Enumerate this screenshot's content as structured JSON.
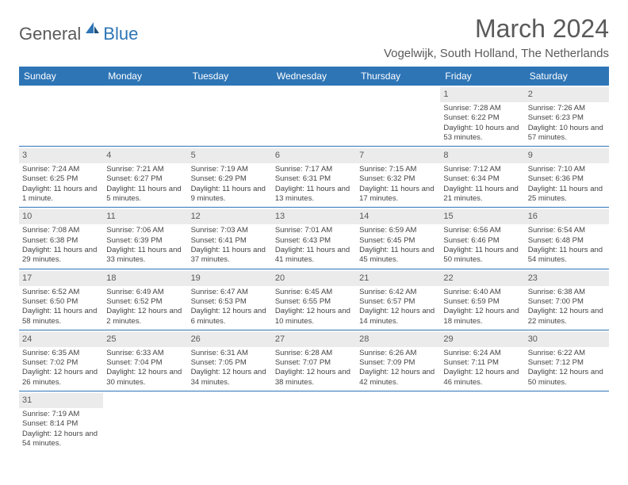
{
  "logo": {
    "part1": "General",
    "part2": "Blue"
  },
  "title": "March 2024",
  "location": "Vogelwijk, South Holland, The Netherlands",
  "colors": {
    "header_bg": "#2e75b6",
    "header_text": "#ffffff",
    "daynum_bg": "#ebebeb",
    "daynum_text": "#595959",
    "border": "#2e75b6",
    "logo_gray": "#5a5a5a",
    "logo_blue": "#2e75b6"
  },
  "weekdays": [
    "Sunday",
    "Monday",
    "Tuesday",
    "Wednesday",
    "Thursday",
    "Friday",
    "Saturday"
  ],
  "weeks": [
    [
      null,
      null,
      null,
      null,
      null,
      {
        "n": "1",
        "sr": "Sunrise: 7:28 AM",
        "ss": "Sunset: 6:22 PM",
        "dl": "Daylight: 10 hours and 53 minutes."
      },
      {
        "n": "2",
        "sr": "Sunrise: 7:26 AM",
        "ss": "Sunset: 6:23 PM",
        "dl": "Daylight: 10 hours and 57 minutes."
      }
    ],
    [
      {
        "n": "3",
        "sr": "Sunrise: 7:24 AM",
        "ss": "Sunset: 6:25 PM",
        "dl": "Daylight: 11 hours and 1 minute."
      },
      {
        "n": "4",
        "sr": "Sunrise: 7:21 AM",
        "ss": "Sunset: 6:27 PM",
        "dl": "Daylight: 11 hours and 5 minutes."
      },
      {
        "n": "5",
        "sr": "Sunrise: 7:19 AM",
        "ss": "Sunset: 6:29 PM",
        "dl": "Daylight: 11 hours and 9 minutes."
      },
      {
        "n": "6",
        "sr": "Sunrise: 7:17 AM",
        "ss": "Sunset: 6:31 PM",
        "dl": "Daylight: 11 hours and 13 minutes."
      },
      {
        "n": "7",
        "sr": "Sunrise: 7:15 AM",
        "ss": "Sunset: 6:32 PM",
        "dl": "Daylight: 11 hours and 17 minutes."
      },
      {
        "n": "8",
        "sr": "Sunrise: 7:12 AM",
        "ss": "Sunset: 6:34 PM",
        "dl": "Daylight: 11 hours and 21 minutes."
      },
      {
        "n": "9",
        "sr": "Sunrise: 7:10 AM",
        "ss": "Sunset: 6:36 PM",
        "dl": "Daylight: 11 hours and 25 minutes."
      }
    ],
    [
      {
        "n": "10",
        "sr": "Sunrise: 7:08 AM",
        "ss": "Sunset: 6:38 PM",
        "dl": "Daylight: 11 hours and 29 minutes."
      },
      {
        "n": "11",
        "sr": "Sunrise: 7:06 AM",
        "ss": "Sunset: 6:39 PM",
        "dl": "Daylight: 11 hours and 33 minutes."
      },
      {
        "n": "12",
        "sr": "Sunrise: 7:03 AM",
        "ss": "Sunset: 6:41 PM",
        "dl": "Daylight: 11 hours and 37 minutes."
      },
      {
        "n": "13",
        "sr": "Sunrise: 7:01 AM",
        "ss": "Sunset: 6:43 PM",
        "dl": "Daylight: 11 hours and 41 minutes."
      },
      {
        "n": "14",
        "sr": "Sunrise: 6:59 AM",
        "ss": "Sunset: 6:45 PM",
        "dl": "Daylight: 11 hours and 45 minutes."
      },
      {
        "n": "15",
        "sr": "Sunrise: 6:56 AM",
        "ss": "Sunset: 6:46 PM",
        "dl": "Daylight: 11 hours and 50 minutes."
      },
      {
        "n": "16",
        "sr": "Sunrise: 6:54 AM",
        "ss": "Sunset: 6:48 PM",
        "dl": "Daylight: 11 hours and 54 minutes."
      }
    ],
    [
      {
        "n": "17",
        "sr": "Sunrise: 6:52 AM",
        "ss": "Sunset: 6:50 PM",
        "dl": "Daylight: 11 hours and 58 minutes."
      },
      {
        "n": "18",
        "sr": "Sunrise: 6:49 AM",
        "ss": "Sunset: 6:52 PM",
        "dl": "Daylight: 12 hours and 2 minutes."
      },
      {
        "n": "19",
        "sr": "Sunrise: 6:47 AM",
        "ss": "Sunset: 6:53 PM",
        "dl": "Daylight: 12 hours and 6 minutes."
      },
      {
        "n": "20",
        "sr": "Sunrise: 6:45 AM",
        "ss": "Sunset: 6:55 PM",
        "dl": "Daylight: 12 hours and 10 minutes."
      },
      {
        "n": "21",
        "sr": "Sunrise: 6:42 AM",
        "ss": "Sunset: 6:57 PM",
        "dl": "Daylight: 12 hours and 14 minutes."
      },
      {
        "n": "22",
        "sr": "Sunrise: 6:40 AM",
        "ss": "Sunset: 6:59 PM",
        "dl": "Daylight: 12 hours and 18 minutes."
      },
      {
        "n": "23",
        "sr": "Sunrise: 6:38 AM",
        "ss": "Sunset: 7:00 PM",
        "dl": "Daylight: 12 hours and 22 minutes."
      }
    ],
    [
      {
        "n": "24",
        "sr": "Sunrise: 6:35 AM",
        "ss": "Sunset: 7:02 PM",
        "dl": "Daylight: 12 hours and 26 minutes."
      },
      {
        "n": "25",
        "sr": "Sunrise: 6:33 AM",
        "ss": "Sunset: 7:04 PM",
        "dl": "Daylight: 12 hours and 30 minutes."
      },
      {
        "n": "26",
        "sr": "Sunrise: 6:31 AM",
        "ss": "Sunset: 7:05 PM",
        "dl": "Daylight: 12 hours and 34 minutes."
      },
      {
        "n": "27",
        "sr": "Sunrise: 6:28 AM",
        "ss": "Sunset: 7:07 PM",
        "dl": "Daylight: 12 hours and 38 minutes."
      },
      {
        "n": "28",
        "sr": "Sunrise: 6:26 AM",
        "ss": "Sunset: 7:09 PM",
        "dl": "Daylight: 12 hours and 42 minutes."
      },
      {
        "n": "29",
        "sr": "Sunrise: 6:24 AM",
        "ss": "Sunset: 7:11 PM",
        "dl": "Daylight: 12 hours and 46 minutes."
      },
      {
        "n": "30",
        "sr": "Sunrise: 6:22 AM",
        "ss": "Sunset: 7:12 PM",
        "dl": "Daylight: 12 hours and 50 minutes."
      }
    ],
    [
      {
        "n": "31",
        "sr": "Sunrise: 7:19 AM",
        "ss": "Sunset: 8:14 PM",
        "dl": "Daylight: 12 hours and 54 minutes."
      },
      null,
      null,
      null,
      null,
      null,
      null
    ]
  ]
}
